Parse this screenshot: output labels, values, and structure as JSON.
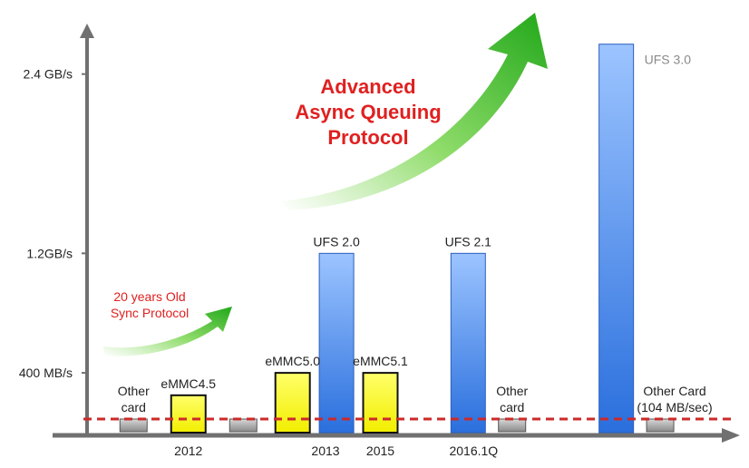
{
  "chart_data": {
    "type": "bar",
    "title": "",
    "xlabel": "",
    "ylabel": "",
    "ylim": [
      0,
      2750
    ],
    "y_ticks": [
      {
        "value": 400,
        "label": "400 MB/s"
      },
      {
        "value": 1200,
        "label": "1.2GB/s"
      },
      {
        "value": 2400,
        "label": "2.4 GB/s"
      }
    ],
    "x_labels": [
      {
        "text": "2012",
        "slot": 1.5
      },
      {
        "text": "2013",
        "slot": 4.0
      },
      {
        "text": "2015",
        "slot": 5.0
      },
      {
        "text": "2016.1Q",
        "slot": 6.7
      },
      {
        "text": "",
        "slot": 8.0
      }
    ],
    "bars": [
      {
        "label": "Other card",
        "value": 90,
        "series": "other",
        "slot": 0.5
      },
      {
        "label": "eMMC4.5",
        "value": 250,
        "series": "emmc",
        "slot": 1.5
      },
      {
        "label": "",
        "value": 90,
        "series": "other",
        "slot": 2.5
      },
      {
        "label": "eMMC5.0",
        "value": 400,
        "series": "emmc",
        "slot": 3.4
      },
      {
        "label": "UFS 2.0",
        "value": 1200,
        "series": "ufs",
        "slot": 4.2
      },
      {
        "label": "eMMC5.1",
        "value": 400,
        "series": "emmc",
        "slot": 5.0
      },
      {
        "label": "UFS 2.1",
        "value": 1200,
        "series": "ufs",
        "slot": 6.6
      },
      {
        "label": "Other card",
        "value": 90,
        "series": "other",
        "slot": 7.4
      },
      {
        "label": "UFS 3.0",
        "value": 2600,
        "series": "ufs",
        "slot": 9.3
      },
      {
        "label": "Other Card (104 MB/sec)",
        "value": 104,
        "series": "other",
        "slot": 10.1
      }
    ],
    "series_colors": {
      "emmc": "#ffff1a",
      "ufs": "#4c8ee8",
      "other": "#a6a6a6"
    },
    "reference_line": {
      "value": 104,
      "color": "#cc2a2a"
    },
    "annotations": {
      "sync": [
        "20 years Old",
        "Sync Protocol"
      ],
      "async": [
        "Advanced",
        "Async Queuing",
        "Protocol"
      ]
    },
    "colors": {
      "annotation_red": "#e02020",
      "arrow_green": "#3fbf2a",
      "axis": "#707070",
      "text": "#222222"
    }
  }
}
